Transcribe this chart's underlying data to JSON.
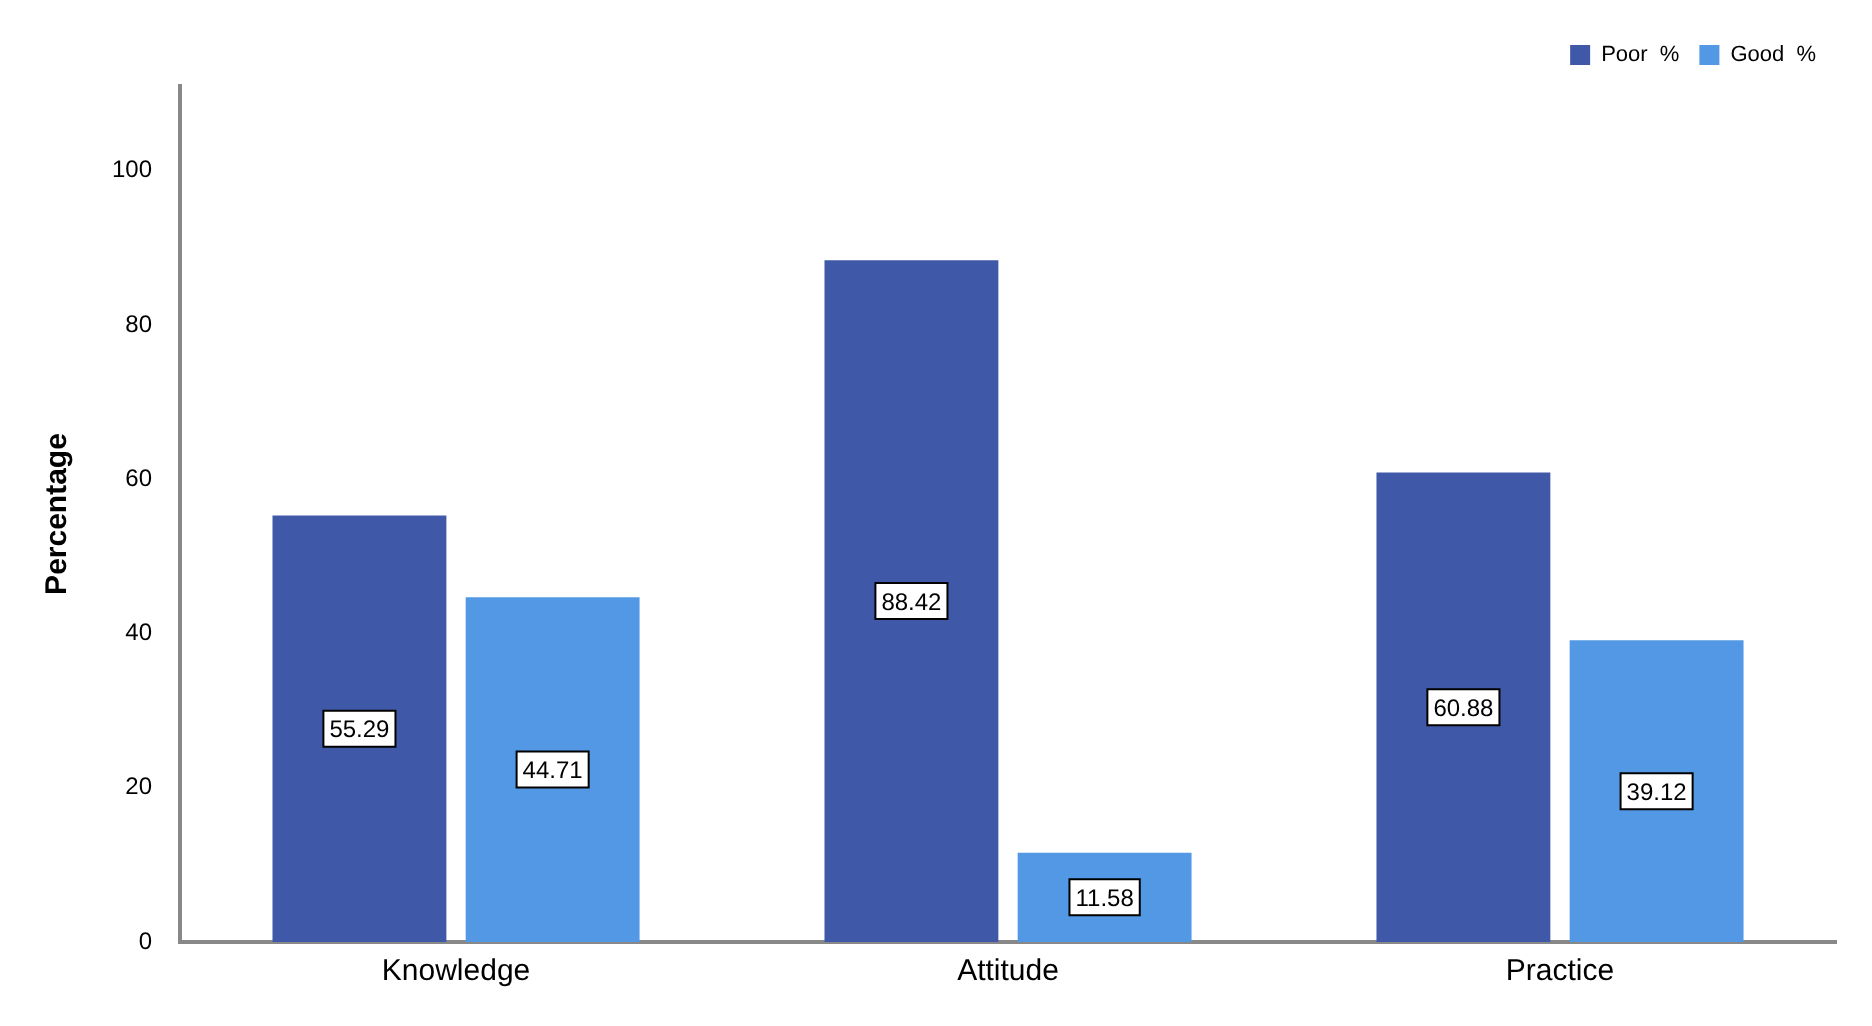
{
  "chart_data": {
    "type": "bar",
    "ylabel": "Percentage",
    "categories": [
      "Knowledge",
      "Attitude",
      "Practice"
    ],
    "series": [
      {
        "name": "Poor  %",
        "color": "#3f58a8",
        "values": [
          55.29,
          88.42,
          60.88
        ]
      },
      {
        "name": "Good  %",
        "color": "#5298e4",
        "values": [
          44.71,
          11.58,
          39.12
        ]
      }
    ],
    "ylim": [
      0,
      111
    ],
    "yticks": [
      0,
      20,
      40,
      60,
      80,
      100
    ],
    "grid": false,
    "legend": "top right",
    "data_labels": true
  }
}
